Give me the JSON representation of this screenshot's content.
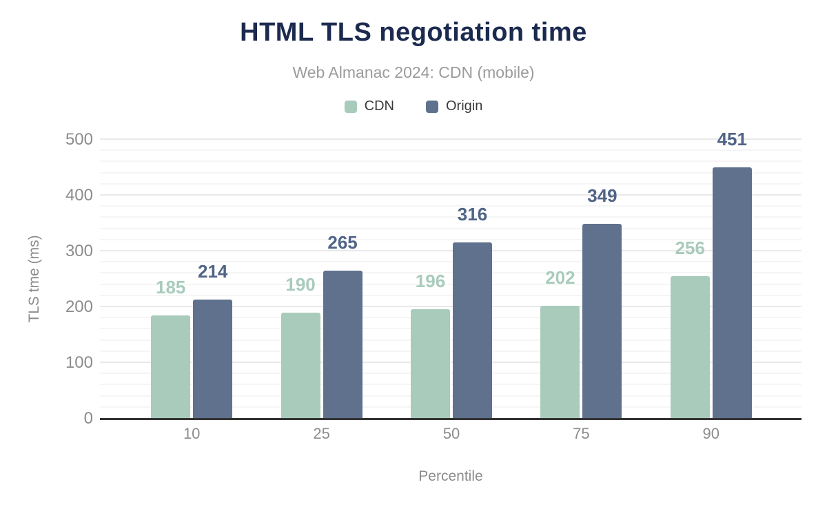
{
  "chart_data": {
    "type": "bar",
    "title": "HTML TLS negotiation time",
    "subtitle": "Web Almanac 2024: CDN (mobile)",
    "xlabel": "Percentile",
    "ylabel": "TLS tme (ms)",
    "categories": [
      "10",
      "25",
      "50",
      "75",
      "90"
    ],
    "series": [
      {
        "name": "CDN",
        "color": "#a9cbbc",
        "label_color": "#a9cbbc",
        "values": [
          185,
          190,
          196,
          202,
          256
        ]
      },
      {
        "name": "Origin",
        "color": "#5f718c",
        "label_color": "#506487",
        "values": [
          214,
          265,
          316,
          349,
          451
        ]
      }
    ],
    "ylim": [
      0,
      500
    ],
    "yticks": [
      0,
      100,
      200,
      300,
      400,
      500
    ],
    "minor_grid_step": 20,
    "grid": true,
    "legend_position": "top",
    "colors": {
      "title": "#1b2a4e",
      "subtitle": "#9b9b9b",
      "axis_text": "#8c8c8c",
      "axis_line": "#333333",
      "grid_major": "#e9e9e9",
      "grid_minor": "#f5f5f5"
    }
  }
}
